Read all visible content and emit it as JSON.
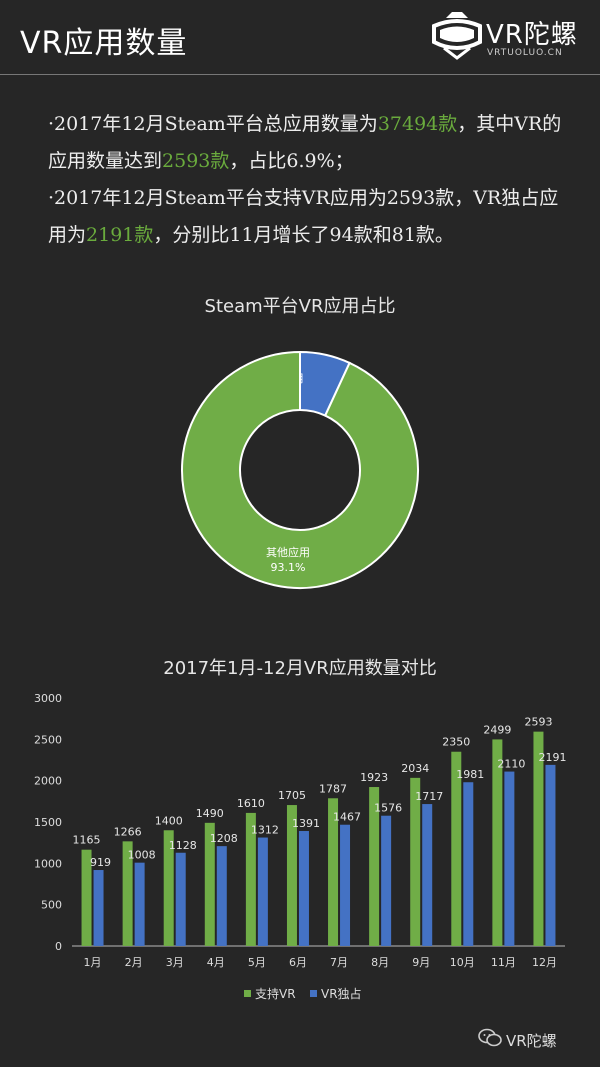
{
  "header": {
    "title": "VR应用数量",
    "logo_text": "VR陀螺",
    "logo_sub": "VRTUOLUO.CN"
  },
  "intro": {
    "p1": [
      {
        "t": "·2017年12月Steam平台总应用数量为"
      },
      {
        "t": "37494款",
        "hl": true
      },
      {
        "t": "，其中VR的应用数量达到"
      },
      {
        "t": "2593款",
        "hl": true
      },
      {
        "t": "，占比6.9%；"
      }
    ],
    "p2": [
      {
        "t": "·2017年12月Steam平台支持VR应用为2593款，VR独占应用为"
      },
      {
        "t": "2191款",
        "hl": true
      },
      {
        "t": "，分别比11月增长了94款和81款。"
      }
    ]
  },
  "chart_data": [
    {
      "type": "pie",
      "title": "Steam平台VR应用占比",
      "slices": [
        {
          "name": "VR应用",
          "value": 6.9,
          "label": "6.9%",
          "color": "#4472c4"
        },
        {
          "name": "其他应用",
          "value": 93.1,
          "label": "93.1%",
          "color": "#70ad47"
        }
      ]
    },
    {
      "type": "bar",
      "title": "2017年1月-12月VR应用数量对比",
      "categories": [
        "1月",
        "2月",
        "3月",
        "4月",
        "5月",
        "6月",
        "7月",
        "8月",
        "9月",
        "10月",
        "11月",
        "12月"
      ],
      "series": [
        {
          "name": "支持VR",
          "color": "#70ad47",
          "values": [
            1165,
            1266,
            1400,
            1490,
            1610,
            1705,
            1787,
            1923,
            2034,
            2350,
            2499,
            2593
          ]
        },
        {
          "name": "VR独占",
          "color": "#4472c4",
          "values": [
            919,
            1008,
            1128,
            1208,
            1312,
            1391,
            1467,
            1576,
            1717,
            1981,
            2110,
            2191
          ]
        }
      ],
      "ylim": [
        0,
        3000
      ],
      "yticks": [
        0,
        500,
        1000,
        1500,
        2000,
        2500,
        3000
      ],
      "legend": "bottom",
      "grid": false
    }
  ],
  "watermark": "VR陀螺"
}
